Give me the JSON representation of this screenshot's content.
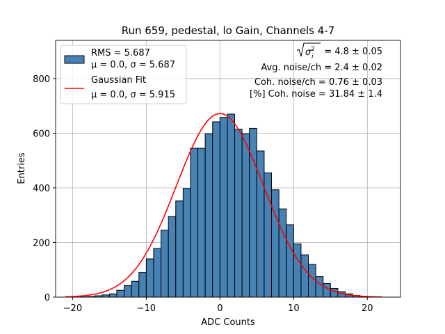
{
  "chart_data": {
    "type": "bar",
    "title": "Run 659, pedestal, lo Gain, Channels 4-7",
    "xlabel": "ADC Counts",
    "ylabel": "Entries",
    "xlim": [
      -22.3,
      24.5
    ],
    "ylim": [
      0,
      940
    ],
    "grid": true,
    "x_ticks": [
      -20,
      -10,
      0,
      10,
      20
    ],
    "x_tick_labels": [
      "−20",
      "−10",
      "0",
      "10",
      "20"
    ],
    "y_ticks": [
      0,
      200,
      400,
      600,
      800
    ],
    "y_tick_labels": [
      "0",
      "200",
      "400",
      "600",
      "800"
    ],
    "histogram": {
      "name": "RMS = 5.687",
      "color": "#4682b4",
      "edge_color": "#000000",
      "bin_width": 1,
      "bin_start": -21,
      "counts": [
        0,
        0,
        1,
        2,
        5,
        8,
        12,
        25,
        42,
        58,
        90,
        140,
        178,
        245,
        295,
        352,
        398,
        545,
        545,
        598,
        642,
        658,
        670,
        615,
        598,
        618,
        535,
        455,
        393,
        323,
        265,
        195,
        155,
        120,
        75,
        50,
        32,
        20,
        12,
        6,
        3,
        1,
        0
      ]
    },
    "fit": {
      "name": "Gaussian Fit",
      "color": "#ff0000",
      "mu": 0.0,
      "sigma": 5.915,
      "amplitude": 672,
      "x_range": [
        -21,
        22
      ]
    },
    "legend": {
      "position": "top-left",
      "entries": [
        {
          "line1": "RMS = 5.687",
          "line2": "μ = 0.0, σ = 5.687"
        },
        {
          "line1": "Gaussian Fit",
          "line2": "μ = 0.0, σ = 5.915"
        }
      ]
    },
    "annotations": {
      "sigma_total": "= 4.8 ± 0.05",
      "avg_noise": "Avg. noise/ch = 2.4 ± 0.02",
      "coh_noise": "Coh. noise/ch = 0.76 ± 0.03",
      "pct_coh_noise": "[%] Coh. noise = 31.84 ± 1.4"
    }
  }
}
